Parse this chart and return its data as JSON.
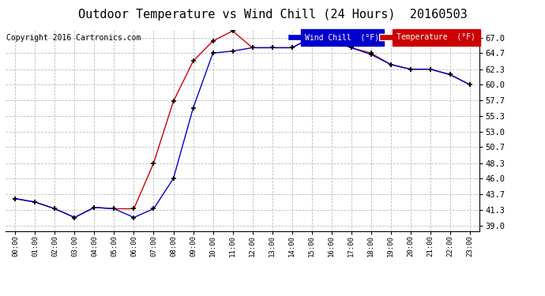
{
  "title": "Outdoor Temperature vs Wind Chill (24 Hours)  20160503",
  "copyright": "Copyright 2016 Cartronics.com",
  "legend_wind_chill": "Wind Chill  (°F)",
  "legend_temperature": "Temperature  (°F)",
  "x_labels": [
    "00:00",
    "01:00",
    "02:00",
    "03:00",
    "04:00",
    "05:00",
    "06:00",
    "07:00",
    "08:00",
    "09:00",
    "10:00",
    "11:00",
    "12:00",
    "13:00",
    "14:00",
    "15:00",
    "16:00",
    "17:00",
    "18:00",
    "19:00",
    "20:00",
    "21:00",
    "22:00",
    "23:00"
  ],
  "y_ticks": [
    39.0,
    41.3,
    43.7,
    46.0,
    48.3,
    50.7,
    53.0,
    55.3,
    57.7,
    60.0,
    62.3,
    64.7,
    67.0
  ],
  "ylim": [
    38.2,
    68.2
  ],
  "temperature": [
    43.0,
    42.5,
    41.5,
    40.2,
    41.7,
    41.5,
    41.5,
    48.3,
    57.5,
    63.5,
    66.5,
    68.0,
    65.5,
    65.5,
    65.5,
    67.0,
    67.0,
    65.5,
    64.7,
    63.0,
    62.3,
    62.3,
    61.5,
    60.0
  ],
  "wind_chill": [
    43.0,
    42.5,
    41.5,
    40.2,
    41.7,
    41.5,
    40.2,
    41.5,
    46.0,
    56.5,
    64.7,
    65.0,
    65.5,
    65.5,
    65.5,
    67.0,
    66.5,
    65.5,
    64.5,
    63.0,
    62.3,
    62.3,
    61.5,
    60.0
  ],
  "temp_color": "#cc0000",
  "wind_color": "#0000cc",
  "bg_color": "#ffffff",
  "plot_bg": "#ffffff",
  "grid_color": "#bbbbbb",
  "title_fontsize": 11,
  "copyright_fontsize": 7,
  "legend_fontsize": 7
}
